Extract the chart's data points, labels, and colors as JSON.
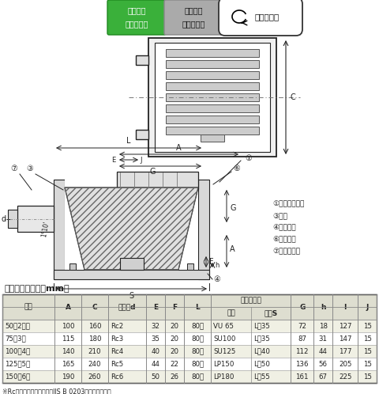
{
  "badge1_line1": "塗　　膜",
  "badge1_line2": "防　水　用",
  "badge2_line1": "モルタル",
  "badge2_line2": "防　水　用",
  "badge3": "ねじ込み式",
  "table_title": "寸法表　＜単位：mm＞",
  "spacer_header": "スペーサー",
  "col_header1": [
    "呼称",
    "A",
    "C",
    "ねじ径d",
    "E",
    "F",
    "L",
    "スペーサー",
    "",
    "G",
    "h",
    "I",
    "J"
  ],
  "col_header2": [
    "",
    "",
    "",
    "",
    "",
    "",
    "",
    "規格",
    "長さS",
    "",
    "",
    "",
    ""
  ],
  "table_rows": [
    [
      "50（2向）",
      "100",
      "160",
      "Rc2",
      "32",
      "20",
      "80～",
      "VU 65",
      "L－35",
      "72",
      "18",
      "127",
      "15"
    ],
    [
      "75（3）",
      "115",
      "180",
      "Rc3",
      "35",
      "20",
      "80～",
      "SU100",
      "L－35",
      "87",
      "31",
      "147",
      "15"
    ],
    [
      "100（4）",
      "140",
      "210",
      "Rc4",
      "40",
      "20",
      "80～",
      "SU125",
      "L－40",
      "112",
      "44",
      "177",
      "15"
    ],
    [
      "125（5）",
      "165",
      "240",
      "Rc5",
      "44",
      "22",
      "80～",
      "LP150",
      "L－50",
      "136",
      "56",
      "205",
      "15"
    ],
    [
      "150（6）",
      "190",
      "260",
      "Rc6",
      "50",
      "26",
      "80～",
      "LP180",
      "L－55",
      "161",
      "67",
      "225",
      "15"
    ]
  ],
  "footnote": "※Rcは管用テーパめねじ（JIS B 0203）を表します。",
  "legend": [
    "①ストレーナー",
    "③本体",
    "④アンカー",
    "⑥丸小ネジ",
    "⑦スペーサー"
  ],
  "bg_color": "#ffffff",
  "table_header_bg": "#deded0",
  "badge1_color": "#3ab03a",
  "badge2_color": "#aaaaaa",
  "line_color": "#222222"
}
